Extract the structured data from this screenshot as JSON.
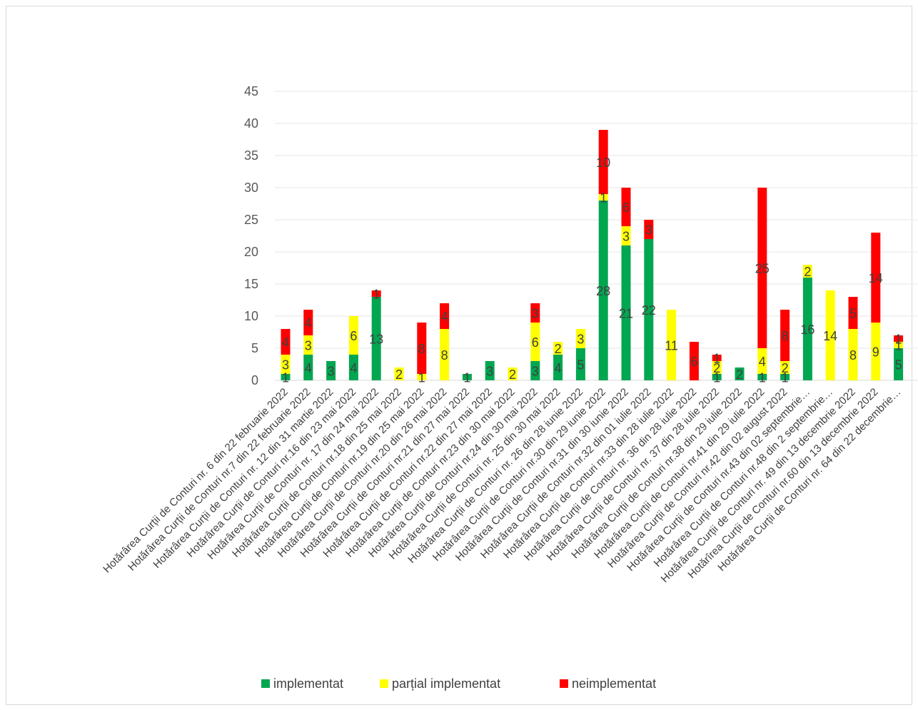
{
  "chart_data": {
    "type": "bar",
    "stacked": true,
    "title": "",
    "xlabel": "",
    "ylabel": "",
    "ylim": [
      0,
      45
    ],
    "yticks": [
      0,
      5,
      10,
      15,
      20,
      25,
      30,
      35,
      40,
      45
    ],
    "grid": true,
    "legend_position": "bottom",
    "categories": [
      "Hotărârea Curții de Conturi nr. 6 din 22 februarie 2022",
      "Hotărârea Curții de Conturi nr.7 din 22 februarie 2022",
      "Hotărârea Curții de Conturi  nr. 12 din 31 martie 2022",
      "Hotărârea Curții de Conturi nr.16 din 23 mai 2022",
      "Hotărârea Curții de Conturi nr. 17 din 24 mai 2022",
      "Hotărârea Curții de Conturi nr.18 din 25 mai 2022",
      "Hotărârea Curții de Conturi nr.19 din 25 mai 2022",
      "Hotărârea Curții de Conturi nr.20 din 26 mai 2022",
      "Hotărârea Curții de Conturi nr.21 din 27 mai 2022",
      "Hotărârea Curții de Conturi nr.22 din 27 mai 2022",
      "Hotărârea Curții de Conturi nr.23 din 30 mai 2022",
      "Hotărârea Curții de Conturi nr.24 din 30 mai 2022",
      "Hotărârea Curții de Conturi  nr. 25 din 30 mai 2022",
      "Hotărârea Curții de Conturi nr. 26 din 28 iunie 2022",
      "Hotărârea Curții de Conturi nr.30 din 29 iunie 2022",
      "Hotărârea Curții de Conturi nr.31 din 30 iunie 2022",
      "Hotărârea Curții de Conturi  nr.32 din 01 iulie 2022",
      "Hotărârea Curții de Conturi nr.33 din 28 iulie 2022",
      "Hotărârea Curții de Conturi nr. 36 din 28 iulie 2022",
      "Hotărârea Curții de Conturi nr. 37 din 28 iulie 2022",
      "Hotărârea Curții de Conturi nr.38 din 29 iulie 2022",
      "Hotărârea Curții de Conturi nr.41 din 29 iulie 2022",
      "Hotărârea Curții de Conturi nr.42 din 02 august 2022",
      "Hotărârea Curții de Conturi nr.43 din 02 septembrie…",
      "Hotărârea Curții de Conturi nr.48 din 2 septembrie…",
      "Hotărârea Curții de Conturi nr. 49 din 13 decembrie 2022",
      "Hotărîrea Curții de Conturi nr.60 din 13 decembrie 2022",
      "Hotărârea Curții de Conturi nr. 64 din 22 decembrie…"
    ],
    "series": [
      {
        "name": "implementat",
        "color": "#00a650",
        "values": [
          1,
          4,
          3,
          4,
          13,
          0,
          0,
          0,
          1,
          3,
          0,
          3,
          4,
          5,
          28,
          21,
          22,
          0,
          0,
          1,
          2,
          1,
          1,
          16,
          0,
          0,
          0,
          5
        ]
      },
      {
        "name": "parțial implementat",
        "color": "#ffff00",
        "values": [
          3,
          3,
          0,
          6,
          0,
          2,
          1,
          8,
          0,
          0,
          2,
          6,
          2,
          3,
          1,
          3,
          0,
          11,
          0,
          2,
          0,
          4,
          2,
          2,
          14,
          8,
          9,
          1
        ]
      },
      {
        "name": "neimplementat",
        "color": "#ff0000",
        "values": [
          4,
          4,
          0,
          0,
          1,
          0,
          8,
          4,
          0,
          0,
          0,
          3,
          0,
          0,
          10,
          6,
          3,
          0,
          6,
          1,
          0,
          25,
          8,
          0,
          0,
          5,
          14,
          1
        ]
      }
    ]
  }
}
